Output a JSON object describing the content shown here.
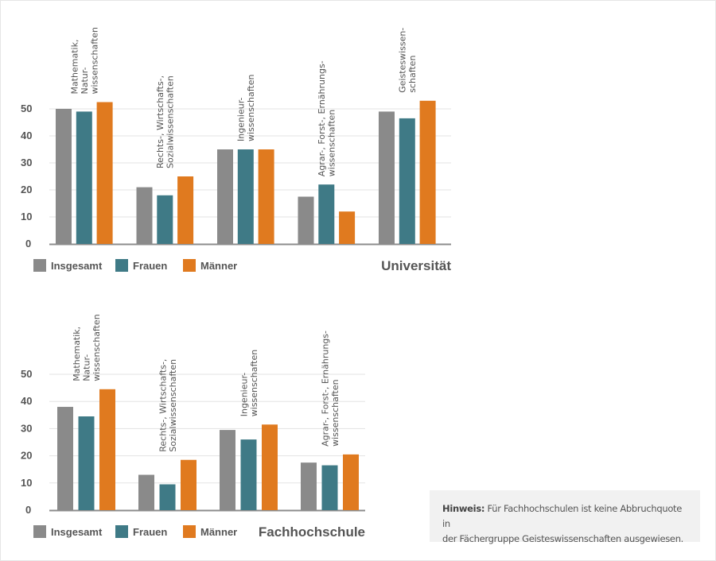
{
  "colors": {
    "insgesamt": "#8a8a8a",
    "frauen": "#3f7a86",
    "maenner": "#e07a1f",
    "grid": "#e3e3e3",
    "axis": "#8c8c8c",
    "text": "#555555"
  },
  "legend": [
    "Insgesamt",
    "Frauen",
    "Männer"
  ],
  "note": {
    "label": "Hinweis:",
    "text_line1": " Für Fachhochschulen ist keine Abbruchquote in",
    "text_line2": "der Fächergruppe Geisteswissenschaften ausgewiesen."
  },
  "chart_data": [
    {
      "type": "bar",
      "title": "Universität",
      "xlabel": "",
      "ylabel": "",
      "ylim": [
        0,
        50
      ],
      "yticks": [
        0,
        10,
        20,
        30,
        40,
        50
      ],
      "grid": true,
      "legend_position": "bottom-left",
      "categories": [
        [
          "Mathematik,",
          "Natur-",
          "wissenschaften"
        ],
        [
          "Rechts-, Wirtschafts-,",
          "Sozialwissenschaften"
        ],
        [
          "Ingenieur-",
          "wissenschaften"
        ],
        [
          "Agrar-, Forst-, Ernährungs-",
          "wissenschaften"
        ],
        [
          "Geisteswissen-",
          "schaften"
        ]
      ],
      "series": [
        {
          "name": "Insgesamt",
          "values": [
            50,
            21,
            35,
            17.5,
            49
          ]
        },
        {
          "name": "Frauen",
          "values": [
            49,
            18,
            35,
            22,
            46.5
          ]
        },
        {
          "name": "Männer",
          "values": [
            52.5,
            25,
            35,
            12,
            53
          ]
        }
      ]
    },
    {
      "type": "bar",
      "title": "Fachhochschule",
      "xlabel": "",
      "ylabel": "",
      "ylim": [
        0,
        50
      ],
      "yticks": [
        0,
        10,
        20,
        30,
        40,
        50
      ],
      "grid": true,
      "legend_position": "bottom-left",
      "categories": [
        [
          "Mathematik,",
          "Natur-",
          "wissenschaften"
        ],
        [
          "Rechts-, Wirtschafts-,",
          "Sozialwissenschaften"
        ],
        [
          "Ingenieur-",
          "wissenschaften"
        ],
        [
          "Agrar-, Forst-, Ernährungs-",
          "wissenschaften"
        ]
      ],
      "series": [
        {
          "name": "Insgesamt",
          "values": [
            38,
            13,
            29.5,
            17.5
          ]
        },
        {
          "name": "Frauen",
          "values": [
            34.5,
            9.5,
            26,
            16.5
          ]
        },
        {
          "name": "Männer",
          "values": [
            44.5,
            18.5,
            31.5,
            20.5
          ]
        }
      ]
    }
  ]
}
